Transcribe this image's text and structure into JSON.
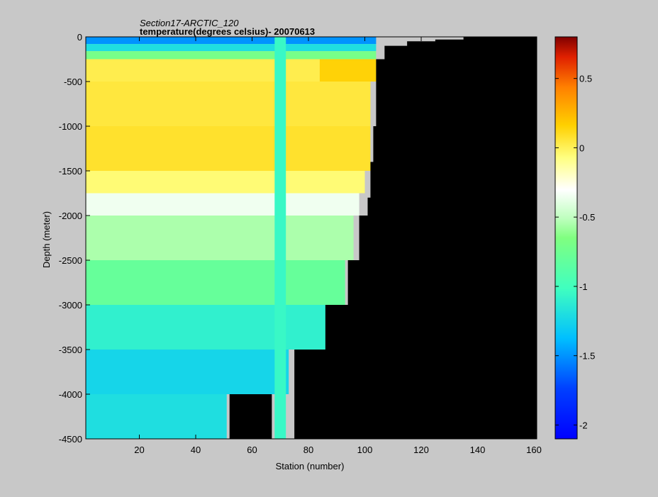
{
  "chart_data": {
    "type": "heatmap",
    "title": "Section17-ARCTIC_120",
    "subtitle": "temperature(degrees  celsius)- 20070613",
    "xlabel": "Station (number)",
    "ylabel": "Depth (meter)",
    "xlim": [
      1,
      161
    ],
    "ylim": [
      -4500,
      0
    ],
    "x_ticks": [
      20,
      40,
      60,
      80,
      100,
      120,
      140,
      160
    ],
    "y_ticks": [
      0,
      -500,
      -1000,
      -1500,
      -2000,
      -2500,
      -3000,
      -3500,
      -4000,
      -4500
    ],
    "colorbar": {
      "range": [
        -2.1,
        0.8
      ],
      "ticks": [
        0.5,
        0,
        -0.5,
        -1,
        -1.5,
        -2
      ]
    },
    "bathymetry": {
      "stations": [
        1,
        10,
        14,
        16,
        19,
        21,
        23,
        50,
        51,
        52,
        53,
        57,
        62,
        63,
        65,
        67,
        68,
        73,
        75,
        86,
        91,
        94,
        96,
        98,
        100,
        101,
        102,
        103,
        104,
        107,
        115,
        125,
        135,
        161
      ],
      "bottom_depth": [
        -4500,
        -4500,
        -4500,
        -4500,
        -4500,
        -4500,
        -4500,
        -4500,
        -4500,
        -4000,
        -4000,
        -4000,
        -4000,
        -4000,
        -4000,
        -4500,
        -4500,
        -4500,
        -3500,
        -3000,
        -3000,
        -2500,
        -2500,
        -2000,
        -2000,
        -1800,
        -1400,
        -1000,
        -250,
        -100,
        -50,
        -30,
        0,
        0
      ]
    },
    "cells": [
      {
        "x": [
          1,
          104
        ],
        "y": [
          0,
          -80
        ],
        "value": -1.5
      },
      {
        "x": [
          1,
          104
        ],
        "y": [
          -80,
          -160
        ],
        "value": -1.2
      },
      {
        "x": [
          1,
          104
        ],
        "y": [
          -160,
          -250
        ],
        "value": -0.7
      },
      {
        "x": [
          1,
          84
        ],
        "y": [
          -250,
          -500
        ],
        "value": 0.02
      },
      {
        "x": [
          84,
          104
        ],
        "y": [
          -250,
          -500
        ],
        "value": 0.15
      },
      {
        "x": [
          1,
          102
        ],
        "y": [
          -500,
          -1000
        ],
        "value": 0.05
      },
      {
        "x": [
          1,
          102
        ],
        "y": [
          -1000,
          -1500
        ],
        "value": 0.08
      },
      {
        "x": [
          1,
          100
        ],
        "y": [
          -1500,
          -1750
        ],
        "value": -0.05
      },
      {
        "x": [
          1,
          98
        ],
        "y": [
          -1750,
          -2000
        ],
        "value": -0.35
      },
      {
        "x": [
          1,
          96
        ],
        "y": [
          -2000,
          -2500
        ],
        "value": -0.55
      },
      {
        "x": [
          1,
          93
        ],
        "y": [
          -2500,
          -3000
        ],
        "value": -0.8
      },
      {
        "x": [
          1,
          87
        ],
        "y": [
          -3000,
          -3500
        ],
        "value": -1.1
      },
      {
        "x": [
          1,
          73
        ],
        "y": [
          -3500,
          -4000
        ],
        "value": -1.25
      },
      {
        "x": [
          1,
          51
        ],
        "y": [
          -4000,
          -4500
        ],
        "value": -1.2
      },
      {
        "x": [
          68,
          72
        ],
        "y": [
          0,
          -4500
        ],
        "value": -1.05
      }
    ]
  }
}
